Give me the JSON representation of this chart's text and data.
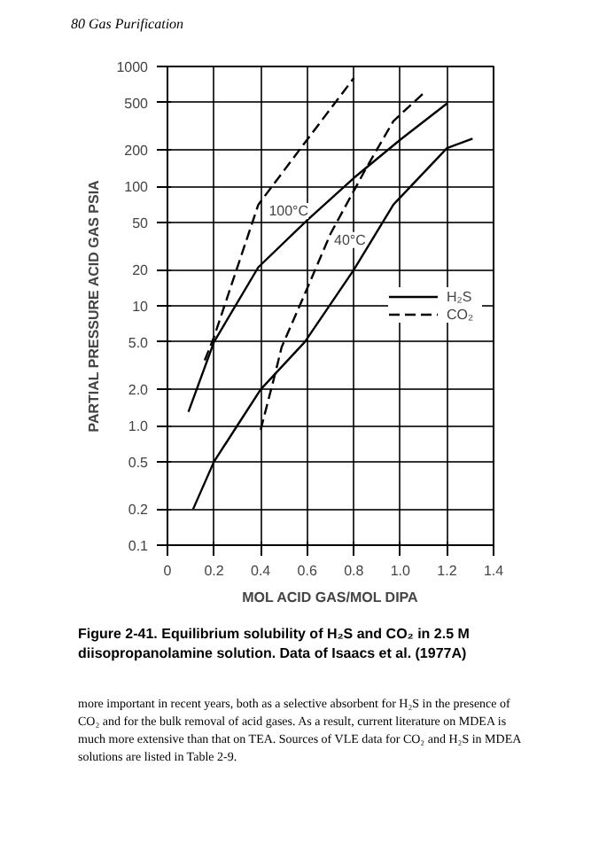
{
  "chart_data": {
    "type": "line",
    "title": "Figure 2-41. Equilibrium solubility of H₂S and CO₂ in 2.5 M diisopropanolamine solution. Data of Isaacs et al. (1977A)",
    "xlabel": "MOL ACID GAS/MOL DIPA",
    "ylabel": "PARTIAL PRESSURE ACID GAS PSIA",
    "log": "y",
    "grid": true,
    "legend": "right",
    "marker": "none",
    "xlim": [
      0,
      1.4
    ],
    "xticks": [
      0,
      0.2,
      0.4,
      0.6,
      0.8,
      {
        "value": 1,
        "label": "1.0"
      },
      1.2,
      1.4
    ],
    "ylim": [
      0.1,
      1000
    ],
    "yticks": [
      0.1,
      0.2,
      0.5,
      {
        "value": 1,
        "label": "1.0"
      },
      {
        "value": 2,
        "label": "2.0"
      },
      {
        "value": 5,
        "label": "5.0"
      },
      10,
      20,
      50,
      100,
      200,
      500,
      1000
    ],
    "series": [
      {
        "name": "H₂S",
        "color": "#000000",
        "line_style": "solid",
        "x": [
          0.09,
          0.2,
          0.39,
          0.6,
          0.8,
          1.0,
          1.2
        ],
        "values": [
          1.3,
          5,
          21,
          52,
          117,
          245,
          490
        ]
      },
      {
        "name": "CO₂",
        "color": "#000000",
        "line_style": "dashed",
        "x": [
          0.16,
          0.2,
          0.39,
          0.6,
          0.8
        ],
        "values": [
          3.5,
          5.5,
          70,
          245,
          800
        ]
      },
      {
        "color": "#000000",
        "line_style": "solid",
        "x": [
          0.11,
          0.2,
          0.3,
          0.4,
          0.59,
          0.8,
          0.97,
          1.2,
          1.31
        ],
        "values": [
          0.2,
          0.5,
          1,
          2,
          5,
          20,
          70,
          208,
          250
        ]
      },
      {
        "color": "#000000",
        "line_style": "dashed",
        "x": [
          0.4,
          0.46,
          0.49,
          0.59,
          0.7,
          0.85,
          0.97,
          1.1
        ],
        "values": [
          0.92,
          2.6,
          4.5,
          12.6,
          40,
          138,
          350,
          600
        ]
      }
    ],
    "annotations": [
      "80 Gas Purification",
      {
        "text": "100°C",
        "x": 0.42,
        "y": 70
      },
      {
        "text": "40°C",
        "x": 0.7,
        "y": 40
      },
      "more important in recent years, both as a selective absorbent for H₂S in the presence of CO₂ and for the bulk removal of acid gases. As a result, current literature on MDEA is much more extensive than that on TEA. Sources of VLE data for CO₂ and H₂S in MDEA solutions are listed in Table 2-9."
    ]
  }
}
